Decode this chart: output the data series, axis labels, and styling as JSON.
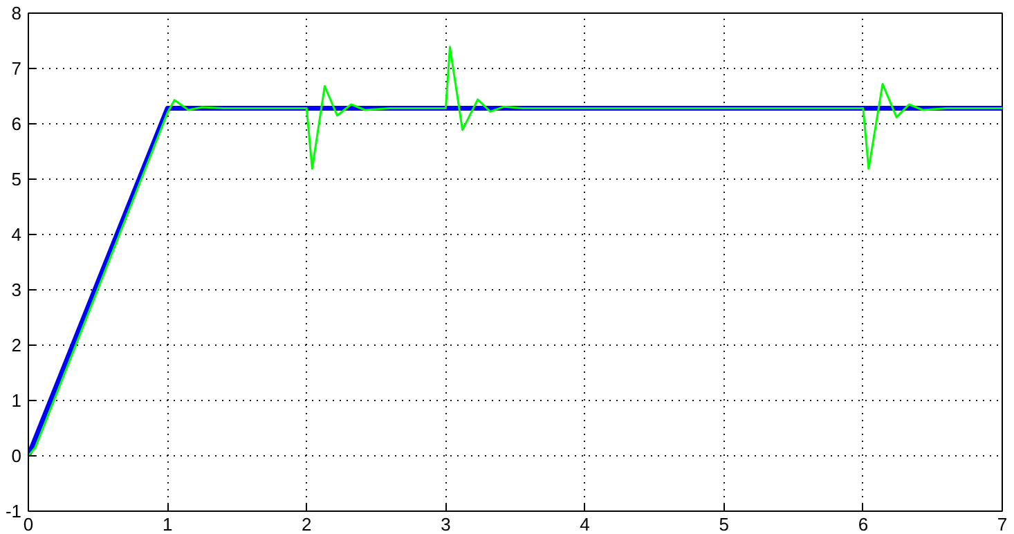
{
  "chart_data": {
    "type": "line",
    "xlim": [
      0,
      7
    ],
    "ylim": [
      -1,
      8
    ],
    "xticks": [
      0,
      1,
      2,
      3,
      4,
      5,
      6,
      7
    ],
    "yticks": [
      -1,
      0,
      1,
      2,
      3,
      4,
      5,
      6,
      7,
      8
    ],
    "grid": true,
    "line_style": "solid",
    "marker": "none",
    "series": [
      {
        "color": "#0000ff",
        "x": [
          0,
          1,
          7
        ],
        "values": [
          0,
          6.28,
          6.28
        ]
      },
      {
        "color": "#00ff00",
        "x": [
          0,
          0.05,
          1.0,
          1.05,
          1.15,
          1.25,
          1.4,
          2.0,
          2.04,
          2.13,
          2.22,
          2.32,
          2.42,
          2.6,
          3.0,
          3.03,
          3.12,
          3.23,
          3.32,
          3.42,
          3.55,
          6.0,
          6.04,
          6.14,
          6.24,
          6.33,
          6.43,
          6.6,
          7
        ],
        "values": [
          0,
          0.15,
          6.2,
          6.43,
          6.25,
          6.3,
          6.28,
          6.28,
          5.19,
          6.68,
          6.15,
          6.35,
          6.25,
          6.28,
          6.28,
          7.39,
          5.89,
          6.44,
          6.22,
          6.31,
          6.28,
          6.28,
          5.19,
          6.72,
          6.12,
          6.35,
          6.25,
          6.28,
          6.28
        ]
      }
    ]
  }
}
